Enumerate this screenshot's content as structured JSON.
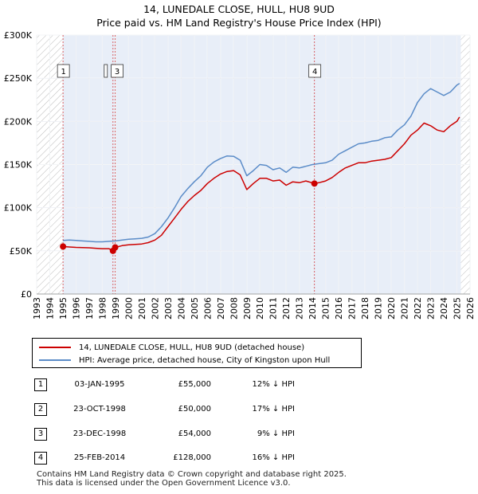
{
  "title": "14, LUNEDALE CLOSE, HULL, HU8 9UD",
  "subtitle": "Price paid vs. HM Land Registry's House Price Index (HPI)",
  "colors": {
    "property": "#cc0000",
    "hpi": "#5b8cc8",
    "band": "#e8eef8",
    "hatch": "#bbbbbb"
  },
  "legend": {
    "property": "14, LUNEDALE CLOSE, HULL, HU8 9UD (detached house)",
    "hpi": "HPI: Average price, detached house, City of Kingston upon Hull"
  },
  "transactions": [
    {
      "num": "1",
      "date": "03-JAN-1995",
      "price": "£55,000",
      "hpi": "12% ↓ HPI"
    },
    {
      "num": "2",
      "date": "23-OCT-1998",
      "price": "£50,000",
      "hpi": "17% ↓ HPI"
    },
    {
      "num": "3",
      "date": "23-DEC-1998",
      "price": "£54,000",
      "hpi": "9% ↓ HPI"
    },
    {
      "num": "4",
      "date": "25-FEB-2014",
      "price": "£128,000",
      "hpi": "16% ↓ HPI"
    }
  ],
  "footer": {
    "line1": "Contains HM Land Registry data © Crown copyright and database right 2025.",
    "line2": "This data is licensed under the Open Government Licence v3.0."
  },
  "chart_data": {
    "type": "line",
    "title": "14, LUNEDALE CLOSE, HULL, HU8 9UD",
    "xlim": [
      1993,
      2026
    ],
    "ylim": [
      0,
      300000
    ],
    "x_ticks": [
      1993,
      1994,
      1995,
      1996,
      1997,
      1998,
      1999,
      2000,
      2001,
      2002,
      2003,
      2004,
      2005,
      2006,
      2007,
      2008,
      2009,
      2010,
      2011,
      2012,
      2013,
      2014,
      2015,
      2016,
      2017,
      2018,
      2019,
      2020,
      2021,
      2022,
      2023,
      2024,
      2025,
      2026
    ],
    "y_ticks": [
      0,
      50000,
      100000,
      150000,
      200000,
      250000,
      300000
    ],
    "y_tick_labels": [
      "£0",
      "£50K",
      "£100K",
      "£150K",
      "£200K",
      "£250K",
      "£300K"
    ],
    "shaded_range": [
      1995.0,
      2025.3
    ],
    "markers": [
      {
        "label": "1",
        "x": 1995.01,
        "y": 55000
      },
      {
        "label": "2",
        "x": 1998.81,
        "y": 50000
      },
      {
        "label": "3",
        "x": 1998.98,
        "y": 54000
      },
      {
        "label": "4",
        "x": 2014.15,
        "y": 128000
      }
    ],
    "series": [
      {
        "name": "HPI: Average price, detached house, City of Kingston upon Hull",
        "x": [
          1995.0,
          1995.5,
          1996.0,
          1996.5,
          1997.0,
          1997.5,
          1998.0,
          1998.5,
          1999.0,
          1999.5,
          2000.0,
          2000.5,
          2001.0,
          2001.5,
          2002.0,
          2002.5,
          2003.0,
          2003.5,
          2004.0,
          2004.5,
          2005.0,
          2005.5,
          2006.0,
          2006.5,
          2007.0,
          2007.5,
          2008.0,
          2008.5,
          2009.0,
          2009.5,
          2010.0,
          2010.5,
          2011.0,
          2011.5,
          2012.0,
          2012.5,
          2013.0,
          2013.5,
          2014.0,
          2014.5,
          2015.0,
          2015.5,
          2016.0,
          2016.5,
          2017.0,
          2017.5,
          2018.0,
          2018.5,
          2019.0,
          2019.5,
          2020.0,
          2020.5,
          2021.0,
          2021.5,
          2022.0,
          2022.5,
          2023.0,
          2023.5,
          2024.0,
          2024.5,
          2025.0,
          2025.2
        ],
        "values": [
          62000,
          62500,
          62000,
          61500,
          61000,
          60500,
          60500,
          61000,
          61500,
          62500,
          63500,
          64000,
          64500,
          66000,
          70000,
          78000,
          88000,
          100000,
          113000,
          122000,
          130000,
          137000,
          147000,
          153000,
          157000,
          160000,
          159500,
          155000,
          137000,
          143000,
          150000,
          149000,
          144000,
          146000,
          141000,
          147000,
          146000,
          148000,
          150000,
          151000,
          152000,
          155000,
          162000,
          166000,
          170000,
          174000,
          175000,
          177000,
          178000,
          181000,
          182000,
          190000,
          196000,
          206000,
          222000,
          232000,
          238000,
          234000,
          230000,
          234000,
          242000,
          244000
        ]
      },
      {
        "name": "14, LUNEDALE CLOSE, HULL, HU8 9UD (detached house)",
        "x": [
          1995.0,
          1995.5,
          1996.0,
          1996.5,
          1997.0,
          1997.5,
          1998.0,
          1998.5,
          1998.81,
          1998.98,
          1999.5,
          2000.0,
          2000.5,
          2001.0,
          2001.5,
          2002.0,
          2002.5,
          2003.0,
          2003.5,
          2004.0,
          2004.5,
          2005.0,
          2005.5,
          2006.0,
          2006.5,
          2007.0,
          2007.5,
          2008.0,
          2008.5,
          2009.0,
          2009.5,
          2010.0,
          2010.5,
          2011.0,
          2011.5,
          2012.0,
          2012.5,
          2013.0,
          2013.5,
          2014.15,
          2014.5,
          2015.0,
          2015.5,
          2016.0,
          2016.5,
          2017.0,
          2017.5,
          2018.0,
          2018.5,
          2019.0,
          2019.5,
          2020.0,
          2020.5,
          2021.0,
          2021.5,
          2022.0,
          2022.5,
          2023.0,
          2023.5,
          2024.0,
          2024.5,
          2025.0,
          2025.2
        ],
        "values": [
          55000,
          54500,
          54000,
          53800,
          53500,
          53000,
          52500,
          52500,
          50000,
          54000,
          56000,
          57000,
          57500,
          58000,
          59500,
          62500,
          68000,
          78000,
          88000,
          98000,
          107000,
          114000,
          120000,
          128000,
          134000,
          139000,
          142000,
          143000,
          138000,
          121000,
          128000,
          134000,
          134000,
          131000,
          132000,
          126000,
          130000,
          129000,
          131000,
          128000,
          129000,
          131000,
          135000,
          141000,
          146000,
          149000,
          152000,
          152000,
          154000,
          155000,
          156000,
          158000,
          166000,
          174000,
          184000,
          190000,
          198000,
          195000,
          190000,
          188000,
          195000,
          200000,
          205000
        ]
      }
    ]
  }
}
